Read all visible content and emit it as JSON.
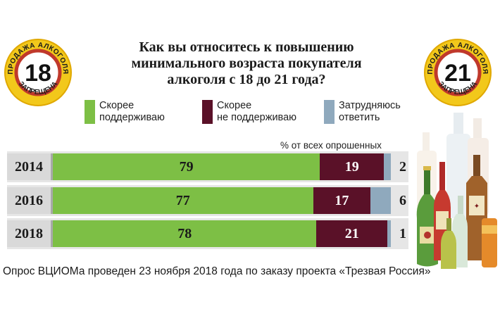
{
  "title": "Как вы относитесь к повышению\nминимального возраста покупателя\nалкоголя с 18 до 21 года?",
  "unit_note": "% от всех опрошенных",
  "footer": "Опрос ВЦИОМа проведен 23 ноября 2018 года по заказу проекта «Трезвая Россия»",
  "badges": {
    "left": {
      "number": "18",
      "top_text": "ПРОДАЖА АЛКОГОЛЯ",
      "bottom_text": "ЗАПРЕЩЕНА"
    },
    "right": {
      "number": "21",
      "top_text": "ПРОДАЖА АЛКОГОЛЯ",
      "bottom_text": "ЗАПРЕЩЕНА"
    }
  },
  "colors": {
    "support": "#7dbf45",
    "oppose": "#5a1128",
    "unsure": "#8fa9bd",
    "badge_ring": "#f2c81b"
  },
  "legend": [
    {
      "label": "Скорее\nподдерживаю",
      "color": "#7dbf45"
    },
    {
      "label": "Скорее\nне поддерживаю",
      "color": "#5a1128"
    },
    {
      "label": "Затрудняюсь\nответить",
      "color": "#8fa9bd"
    }
  ],
  "chart_data": {
    "type": "bar",
    "orientation": "horizontal",
    "stacked": true,
    "title": "Как вы относитесь к повышению минимального возраста покупателя алкоголя с 18 до 21 года?",
    "categories": [
      "2014",
      "2016",
      "2018"
    ],
    "series": [
      {
        "name": "Скорее поддерживаю",
        "values": [
          79,
          77,
          78
        ]
      },
      {
        "name": "Скорее не поддерживаю",
        "values": [
          19,
          17,
          21
        ]
      },
      {
        "name": "Затрудняюсь ответить",
        "values": [
          2,
          6,
          1
        ]
      }
    ],
    "xlim": [
      0,
      100
    ],
    "legend": "top",
    "grid": false
  }
}
